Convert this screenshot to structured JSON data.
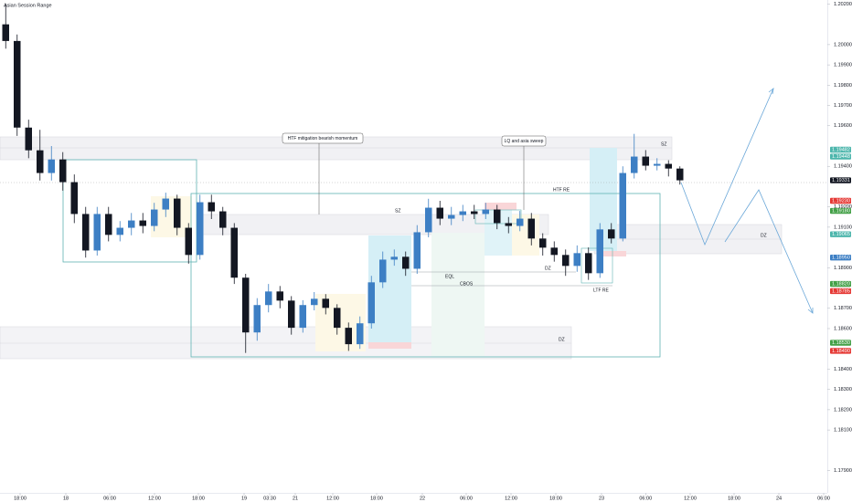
{
  "chart_data": {
    "type": "candlestick",
    "title": "Asian Session Range",
    "x": [
      0,
      1,
      2,
      3,
      4,
      5,
      6,
      7,
      8,
      9,
      10,
      11,
      12,
      13,
      14,
      15,
      16,
      17,
      18,
      19,
      20,
      21,
      22,
      23,
      24,
      25,
      26,
      27,
      28,
      29,
      30,
      31,
      32,
      33,
      34,
      35,
      36,
      37,
      38,
      39,
      40,
      41,
      42,
      43,
      44,
      45,
      46,
      47,
      48,
      49,
      50,
      51,
      52,
      53,
      54,
      55,
      56,
      57,
      58,
      59
    ],
    "open": [
      1.201,
      1.20018,
      1.19591,
      1.19479,
      1.19367,
      1.19434,
      1.19322,
      1.19165,
      1.18985,
      1.19165,
      1.19062,
      1.19097,
      1.19133,
      1.19106,
      1.19187,
      1.19241,
      1.19097,
      1.18963,
      1.19223,
      1.19178,
      1.19097,
      1.18851,
      1.18581,
      1.18716,
      1.18783,
      1.18738,
      1.18604,
      1.18716,
      1.18747,
      1.18702,
      1.18604,
      1.18523,
      1.18626,
      1.18828,
      1.1894,
      1.18954,
      1.18895,
      1.19075,
      1.19196,
      1.19142,
      1.1916,
      1.19178,
      1.19165,
      1.19187,
      1.1912,
      1.19106,
      1.19142,
      1.19044,
      1.18999,
      1.18963,
      1.18909,
      1.18972,
      1.18873,
      1.19089,
      1.19044,
      1.19367,
      1.19448,
      1.19403,
      1.19412,
      1.19389
    ],
    "high": [
      1.202,
      1.2005,
      1.1963,
      1.1958,
      1.195,
      1.1947,
      1.1936,
      1.192,
      1.192,
      1.192,
      1.1913,
      1.1917,
      1.1917,
      1.1922,
      1.1927,
      1.1926,
      1.1912,
      1.1926,
      1.1926,
      1.192,
      1.1912,
      1.1887,
      1.1875,
      1.1882,
      1.1881,
      1.1876,
      1.1874,
      1.1878,
      1.1877,
      1.1872,
      1.1863,
      1.1866,
      1.1886,
      1.1898,
      1.1899,
      1.1898,
      1.1911,
      1.1924,
      1.1923,
      1.192,
      1.1921,
      1.1921,
      1.1922,
      1.1921,
      1.1915,
      1.1918,
      1.1917,
      1.1907,
      1.1903,
      1.1899,
      1.1901,
      1.19,
      1.1912,
      1.1912,
      1.194,
      1.1956,
      1.1948,
      1.1944,
      1.1943,
      1.194
    ],
    "low": [
      1.1998,
      1.1955,
      1.1944,
      1.1933,
      1.1933,
      1.1928,
      1.1912,
      1.1895,
      1.1896,
      1.1903,
      1.1903,
      1.1906,
      1.1907,
      1.1908,
      1.1915,
      1.1906,
      1.1892,
      1.1894,
      1.1914,
      1.1906,
      1.1882,
      1.1848,
      1.1854,
      1.1868,
      1.187,
      1.1857,
      1.1858,
      1.1869,
      1.1867,
      1.1857,
      1.1849,
      1.185,
      1.186,
      1.188,
      1.1891,
      1.1886,
      1.1887,
      1.1905,
      1.1911,
      1.1911,
      1.1913,
      1.1914,
      1.1914,
      1.1909,
      1.1907,
      1.1908,
      1.1901,
      1.1896,
      1.1893,
      1.1886,
      1.1888,
      1.1884,
      1.1885,
      1.1902,
      1.1903,
      1.1934,
      1.1938,
      1.1938,
      1.1935,
      1.1931
    ],
    "close": [
      1.20018,
      1.19591,
      1.19479,
      1.19367,
      1.19434,
      1.19322,
      1.19165,
      1.18985,
      1.19165,
      1.19062,
      1.19097,
      1.19133,
      1.19106,
      1.19187,
      1.19241,
      1.19097,
      1.18963,
      1.19223,
      1.19178,
      1.19097,
      1.18851,
      1.18581,
      1.18716,
      1.18783,
      1.18738,
      1.18604,
      1.18716,
      1.18747,
      1.18702,
      1.18604,
      1.18523,
      1.18626,
      1.18828,
      1.1894,
      1.18954,
      1.18895,
      1.19075,
      1.19196,
      1.19142,
      1.1916,
      1.19178,
      1.19165,
      1.19187,
      1.1912,
      1.19106,
      1.19142,
      1.19044,
      1.18999,
      1.18963,
      1.18909,
      1.18972,
      1.18873,
      1.19089,
      1.19044,
      1.19367,
      1.19448,
      1.19403,
      1.19412,
      1.19389,
      1.19331
    ],
    "up_color": "#3d7fc4",
    "down_color": "#131722",
    "xlim": [
      -0.5,
      71.9
    ],
    "xticks": [
      {
        "value": 1.26,
        "label": "18:00"
      },
      {
        "value": 5.26,
        "label": "18"
      },
      {
        "value": 9.1,
        "label": "06:00"
      },
      {
        "value": 13.02,
        "label": "12:00"
      },
      {
        "value": 16.86,
        "label": "18:00"
      },
      {
        "value": 20.86,
        "label": "19"
      },
      {
        "value": 23.1,
        "label": "03:30"
      },
      {
        "value": 25.34,
        "label": "21"
      },
      {
        "value": 28.62,
        "label": "12:00"
      },
      {
        "value": 32.46,
        "label": "18:00"
      },
      {
        "value": 36.46,
        "label": "22"
      },
      {
        "value": 40.3,
        "label": "06:00"
      },
      {
        "value": 44.22,
        "label": "12:00"
      },
      {
        "value": 48.14,
        "label": "18:00"
      },
      {
        "value": 52.14,
        "label": "23"
      },
      {
        "value": 56,
        "label": "06:00"
      },
      {
        "value": 59.9,
        "label": "12:00"
      },
      {
        "value": 63.74,
        "label": "18:00"
      },
      {
        "value": 67.66,
        "label": "24"
      },
      {
        "value": 71.58,
        "label": "06:00"
      }
    ],
    "ylim": [
      1.1779,
      1.2022
    ],
    "yticks": [
      {
        "value": 1.202,
        "label": "1.20200"
      },
      {
        "value": 1.2,
        "label": "1.20000"
      },
      {
        "value": 1.199,
        "label": "1.19900"
      },
      {
        "value": 1.198,
        "label": "1.19800"
      },
      {
        "value": 1.197,
        "label": "1.19700"
      },
      {
        "value": 1.196,
        "label": "1.19600"
      },
      {
        "value": 1.194,
        "label": "1.19400"
      },
      {
        "value": 1.192,
        "label": "1.19200"
      },
      {
        "value": 1.191,
        "label": "1.19100"
      },
      {
        "value": 1.189,
        "label": "1.18900"
      },
      {
        "value": 1.187,
        "label": "1.18700"
      },
      {
        "value": 1.186,
        "label": "1.18600"
      },
      {
        "value": 1.184,
        "label": "1.18400"
      },
      {
        "value": 1.183,
        "label": "1.18300"
      },
      {
        "value": 1.182,
        "label": "1.18200"
      },
      {
        "value": 1.181,
        "label": "1.18100"
      },
      {
        "value": 1.179,
        "label": "1.17900"
      }
    ],
    "price_labels": [
      {
        "value": 1.19482,
        "label": "1.19482",
        "color": "#4db6ac"
      },
      {
        "value": 1.19448,
        "label": "1.19448",
        "color": "#4db6ac"
      },
      {
        "value": 1.19331,
        "label": "1.19331",
        "color": "#131722"
      },
      {
        "value": 1.1923,
        "label": "1.19230",
        "color": "#e53935"
      },
      {
        "value": 1.1918,
        "label": "1.19180",
        "color": "#43a047"
      },
      {
        "value": 1.19065,
        "label": "1.19065",
        "color": "#4db6ac"
      },
      {
        "value": 1.1895,
        "label": "1.18950",
        "color": "#3d7fc4"
      },
      {
        "value": 1.1882,
        "label": "1.18820",
        "color": "#43a047"
      },
      {
        "value": 1.18785,
        "label": "1.18785",
        "color": "#e53935"
      },
      {
        "value": 1.1853,
        "label": "1.18530",
        "color": "#43a047"
      },
      {
        "value": 1.1849,
        "label": "1.18490",
        "color": "#e53935"
      }
    ],
    "grid": false,
    "annotations": [
      "HTF mitigation bearish momentum",
      "LQ and asia sweep",
      "SZ",
      "SZ",
      "HTF RE",
      "DZ",
      "EQL",
      "CBOS",
      "LTF RE",
      "DZ",
      "DZ"
    ]
  }
}
